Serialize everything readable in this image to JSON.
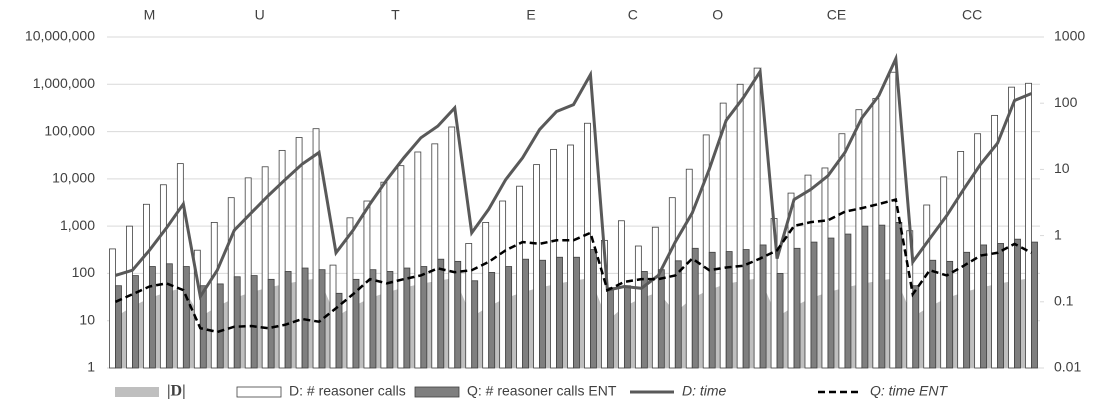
{
  "chart_data": {
    "type": "combo",
    "groups": [
      {
        "label": "M",
        "size": 5
      },
      {
        "label": "U",
        "size": 8
      },
      {
        "label": "T",
        "size": 8
      },
      {
        "label": "E",
        "size": 8
      },
      {
        "label": "C",
        "size": 4
      },
      {
        "label": "O",
        "size": 6
      },
      {
        "label": "CE",
        "size": 8
      },
      {
        "label": "CC",
        "size": 8
      }
    ],
    "log_scale": true,
    "y2_log_scale": true,
    "grid": true,
    "legend": "bottom",
    "ylim": [
      1,
      10000000
    ],
    "yticks": [
      1,
      10,
      100,
      {
        "value": 1000,
        "label": "1,000"
      },
      {
        "value": 10000,
        "label": "10,000"
      },
      {
        "value": 100000,
        "label": "100,000"
      },
      {
        "value": 1000000,
        "label": "1,000,000"
      },
      {
        "value": 10000000,
        "label": "10,000,000"
      }
    ],
    "y2lim": [
      0.01,
      1000
    ],
    "y2ticks": [
      0.01,
      0.1,
      1,
      10,
      100,
      1000
    ],
    "series": [
      {
        "name": "|D|",
        "type": "area",
        "color": "#bfbfbf",
        "values": [
          12,
          20,
          30,
          40,
          50,
          12,
          20,
          30,
          40,
          50,
          60,
          70,
          80,
          12,
          20,
          30,
          40,
          50,
          60,
          70,
          80,
          12,
          20,
          30,
          40,
          50,
          60,
          70,
          80,
          10,
          20,
          30,
          40,
          15,
          30,
          45,
          60,
          70,
          80,
          12,
          20,
          30,
          40,
          50,
          60,
          70,
          80,
          12,
          20,
          30,
          40,
          50,
          60,
          70,
          80
        ]
      },
      {
        "name": "D: # reasoner calls",
        "type": "bar",
        "color": "#ffffff",
        "values": [
          330,
          1000,
          2900,
          7500,
          21000,
          310,
          1200,
          4000,
          10500,
          18000,
          40000,
          75000,
          115000,
          150,
          1500,
          3400,
          8500,
          19000,
          37000,
          55000,
          125000,
          430,
          1200,
          3400,
          7000,
          20000,
          42000,
          52000,
          150000,
          500,
          1300,
          380,
          950,
          4000,
          16000,
          85000,
          400000,
          1000000,
          2200000,
          1450,
          5000,
          12000,
          17000,
          90000,
          290000,
          500000,
          1800000,
          800,
          2800,
          11000,
          38000,
          90000,
          220000,
          870000,
          1050000
        ]
      },
      {
        "name": "Q: # reasoner calls ENT",
        "type": "bar",
        "color": "#7f7f7f",
        "values": [
          55,
          90,
          140,
          160,
          140,
          55,
          60,
          85,
          90,
          75,
          110,
          130,
          120,
          38,
          75,
          120,
          110,
          130,
          140,
          200,
          180,
          70,
          105,
          140,
          200,
          190,
          220,
          220,
          320,
          50,
          55,
          110,
          120,
          185,
          340,
          280,
          290,
          320,
          400,
          100,
          340,
          460,
          560,
          680,
          1000,
          1050,
          1200,
          55,
          190,
          180,
          280,
          400,
          430,
          530,
          460
        ]
      },
      {
        "name": "D: time",
        "type": "line",
        "axis": "y2",
        "color": "#595959",
        "values": [
          0.25,
          0.3,
          0.6,
          1.3,
          3,
          0.12,
          0.3,
          1.2,
          2.2,
          4,
          7,
          12,
          18,
          0.55,
          1.2,
          3,
          7,
          15,
          30,
          45,
          85,
          1.1,
          2.5,
          7,
          15,
          40,
          75,
          95,
          270,
          0.15,
          0.17,
          0.16,
          0.25,
          0.8,
          2.2,
          10,
          55,
          120,
          300,
          0.45,
          3.5,
          5,
          8,
          18,
          60,
          130,
          470,
          0.4,
          0.9,
          2,
          5,
          12,
          25,
          110,
          140
        ]
      },
      {
        "name": "Q: time ENT",
        "type": "line",
        "axis": "y2",
        "dash": true,
        "color": "#000000",
        "values": [
          0.1,
          0.13,
          0.17,
          0.19,
          0.15,
          0.04,
          0.035,
          0.042,
          0.043,
          0.04,
          0.045,
          0.055,
          0.05,
          0.08,
          0.13,
          0.22,
          0.19,
          0.22,
          0.25,
          0.32,
          0.28,
          0.3,
          0.4,
          0.6,
          0.8,
          0.75,
          0.85,
          0.85,
          1.1,
          0.15,
          0.2,
          0.22,
          0.22,
          0.25,
          0.45,
          0.3,
          0.33,
          0.35,
          0.45,
          0.6,
          1.4,
          1.6,
          1.7,
          2.3,
          2.6,
          3,
          3.5,
          0.13,
          0.3,
          0.25,
          0.35,
          0.5,
          0.55,
          0.75,
          0.55
        ]
      }
    ]
  }
}
